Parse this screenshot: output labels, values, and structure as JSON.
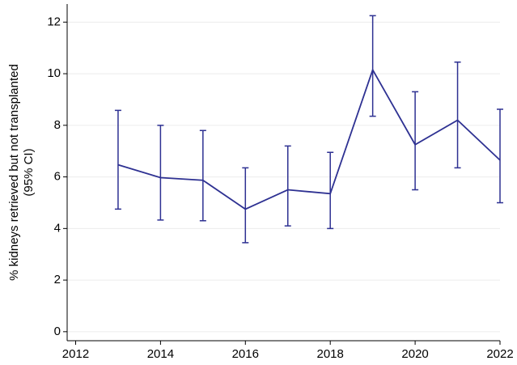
{
  "chart_data": {
    "type": "line",
    "ylabel": [
      "% kidneys retrieved but not transplanted",
      "(95% CI)"
    ],
    "x": [
      2013,
      2014,
      2015,
      2016,
      2017,
      2018,
      2019,
      2020,
      2021,
      2022
    ],
    "series": [
      {
        "color": "#2e3192",
        "values": [
          6.47,
          5.97,
          5.87,
          4.75,
          5.5,
          5.35,
          10.15,
          7.25,
          8.2,
          6.65
        ],
        "ci_lower": [
          4.75,
          4.33,
          4.3,
          3.45,
          4.1,
          4.0,
          8.35,
          5.5,
          6.35,
          5.0
        ],
        "ci_upper": [
          8.58,
          8.0,
          7.8,
          6.35,
          7.2,
          6.95,
          12.25,
          9.3,
          10.45,
          8.62
        ]
      }
    ],
    "xlim": [
      2011.8,
      2022
    ],
    "xticks": [
      2012,
      2014,
      2016,
      2018,
      2020,
      2022
    ],
    "ylim": [
      -0.35,
      12.7
    ],
    "yticks": [
      0,
      2,
      4,
      6,
      8,
      10,
      12
    ],
    "grid": true
  }
}
